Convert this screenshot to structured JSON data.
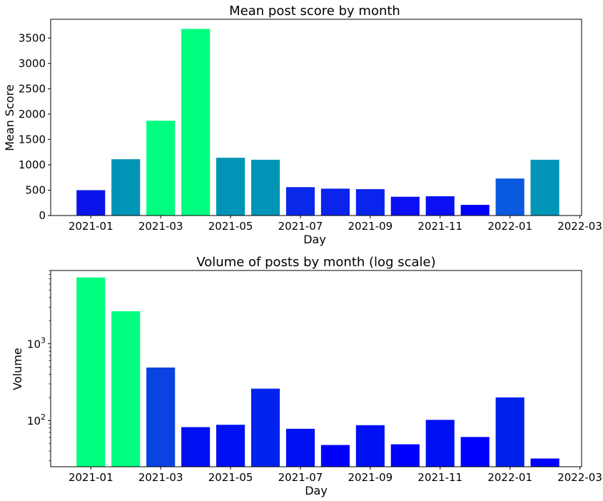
{
  "chart_data": [
    {
      "type": "bar",
      "title": "Mean post score by month",
      "xlabel": "Day",
      "ylabel": "Mean Score",
      "x": [
        "2021-01",
        "2021-02",
        "2021-03",
        "2021-04",
        "2021-05",
        "2021-06",
        "2021-07",
        "2021-08",
        "2021-09",
        "2021-10",
        "2021-11",
        "2021-12",
        "2022-01",
        "2022-02"
      ],
      "values": [
        500,
        1110,
        1870,
        3680,
        1140,
        1100,
        560,
        530,
        520,
        370,
        380,
        210,
        730,
        1100
      ],
      "colors": [
        "#0a14ea",
        "#0095b6",
        "#00ff80",
        "#00ff80",
        "#0095b6",
        "#0095b6",
        "#0a28ea",
        "#0a24ee",
        "#0a24ee",
        "#0a10f2",
        "#0a10f2",
        "#0000ff",
        "#0a5ae0",
        "#0095b6"
      ],
      "xticks": [
        "2021-01",
        "2021-03",
        "2021-05",
        "2021-07",
        "2021-09",
        "2021-11",
        "2022-01",
        "2022-03"
      ],
      "yticks": [
        "0",
        "500",
        "1000",
        "1500",
        "2000",
        "2500",
        "3000",
        "3500"
      ],
      "ylim": [
        0,
        3870
      ],
      "yscale": "linear",
      "grid": false
    },
    {
      "type": "bar",
      "title": "Volume of posts by month (log scale)",
      "xlabel": "Day",
      "ylabel": "Volume",
      "x": [
        "2021-01",
        "2021-02",
        "2021-03",
        "2021-04",
        "2021-05",
        "2021-06",
        "2021-07",
        "2021-08",
        "2021-09",
        "2021-10",
        "2021-11",
        "2021-12",
        "2022-01",
        "2022-02"
      ],
      "values": [
        7300,
        2650,
        490,
        82,
        88,
        260,
        78,
        48,
        87,
        49,
        102,
        61,
        200,
        32
      ],
      "colors": [
        "#00ff80",
        "#00ff80",
        "#0a44e0",
        "#0010f2",
        "#0010f2",
        "#0024ee",
        "#0010f2",
        "#0000ff",
        "#0010f2",
        "#0000ff",
        "#0010f2",
        "#0000ff",
        "#0020ee",
        "#0000ff"
      ],
      "xticks": [
        "2021-01",
        "2021-03",
        "2021-05",
        "2021-07",
        "2021-09",
        "2021-11",
        "2022-01",
        "2022-03"
      ],
      "yticks": [
        {
          "base": "10",
          "exp": "3",
          "value": 1000
        },
        {
          "base": "10",
          "exp": "2",
          "value": 100
        }
      ],
      "ylim": [
        25,
        9000
      ],
      "yscale": "log",
      "grid": false
    }
  ]
}
